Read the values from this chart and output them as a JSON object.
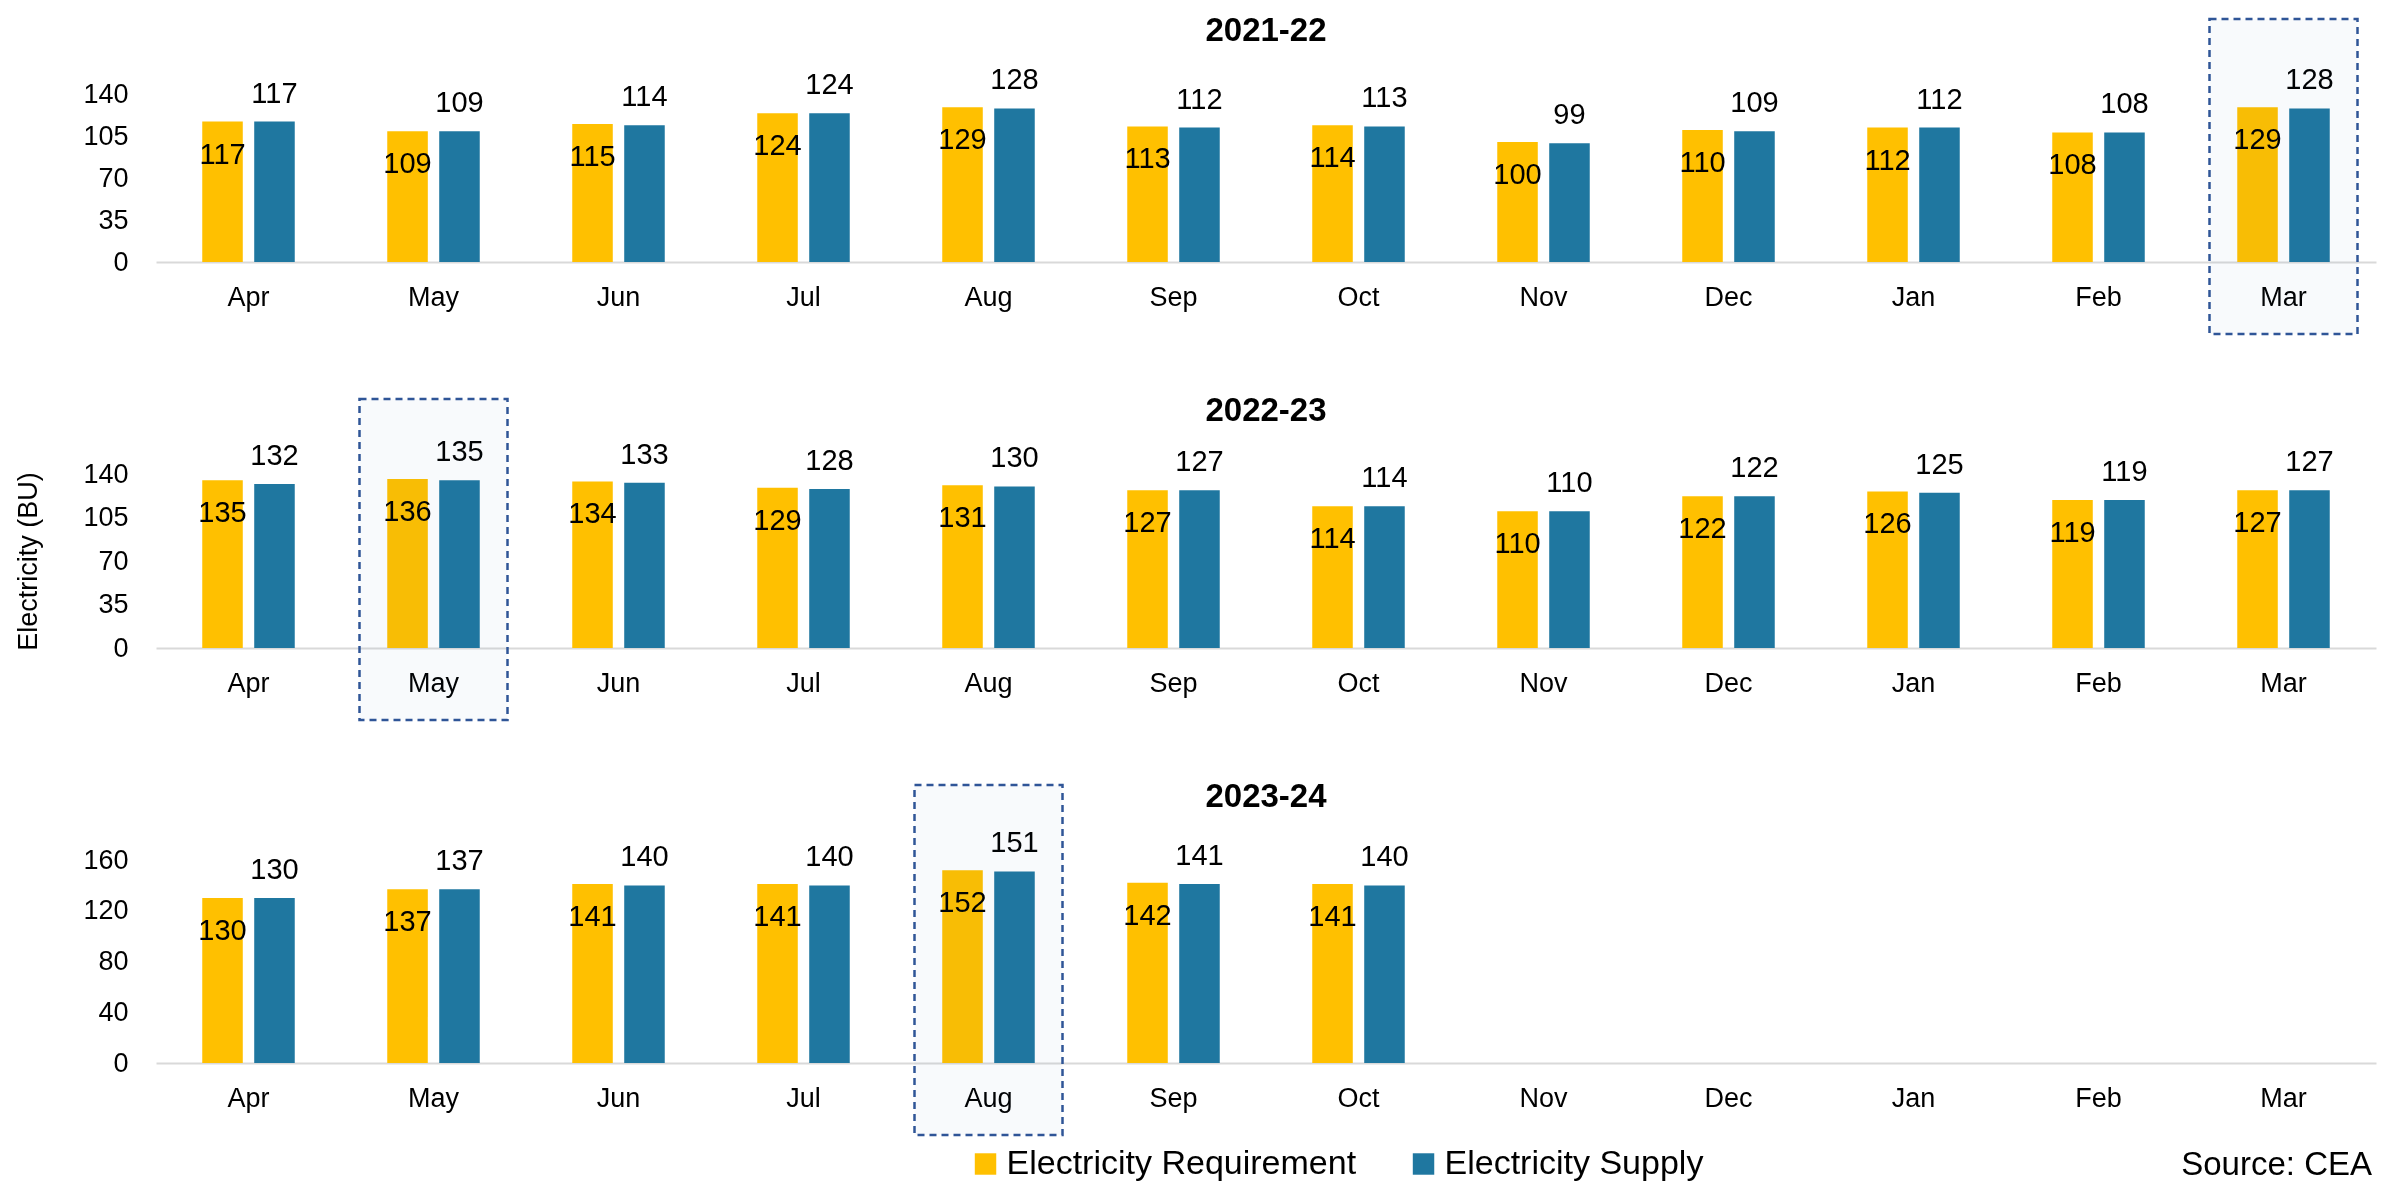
{
  "chart_data": [
    {
      "type": "bar",
      "title": "2021-22",
      "categories": [
        "Apr",
        "May",
        "Jun",
        "Jul",
        "Aug",
        "Sep",
        "Oct",
        "Nov",
        "Dec",
        "Jan",
        "Feb",
        "Mar"
      ],
      "series": [
        {
          "name": "Electricity Requirement",
          "color": "#ffc000",
          "values": [
            117,
            109,
            115,
            124,
            129,
            113,
            114,
            100,
            110,
            112,
            108,
            129
          ]
        },
        {
          "name": "Electricity Supply",
          "color": "#1f77a0",
          "values": [
            117,
            109,
            114,
            124,
            128,
            112,
            113,
            99,
            109,
            112,
            108,
            128
          ]
        }
      ],
      "ylim": [
        0,
        140
      ],
      "yticks": [
        0,
        35,
        70,
        105,
        140
      ],
      "data_labels": true,
      "legend": "bottom",
      "bands": [
        {
          "axis": "x",
          "from": "Mar",
          "to": "Mar",
          "color": "#2f5597"
        }
      ]
    },
    {
      "type": "bar",
      "title": "2022-23",
      "ylabel": "Electricity (BU)",
      "categories": [
        "Apr",
        "May",
        "Jun",
        "Jul",
        "Aug",
        "Sep",
        "Oct",
        "Nov",
        "Dec",
        "Jan",
        "Feb",
        "Mar"
      ],
      "series": [
        {
          "name": "Electricity Requirement",
          "color": "#ffc000",
          "values": [
            135,
            136,
            134,
            129,
            131,
            127,
            114,
            110,
            122,
            126,
            119,
            127
          ]
        },
        {
          "name": "Electricity Supply",
          "color": "#1f77a0",
          "values": [
            132,
            135,
            133,
            128,
            130,
            127,
            114,
            110,
            122,
            125,
            119,
            127
          ]
        }
      ],
      "ylim": [
        0,
        140
      ],
      "yticks": [
        0,
        35,
        70,
        105,
        140
      ],
      "data_labels": true,
      "legend": "bottom",
      "bands": [
        {
          "axis": "x",
          "from": "May",
          "to": "May",
          "color": "#2f5597"
        }
      ]
    },
    {
      "type": "bar",
      "title": "2023-24",
      "categories": [
        "Apr",
        "May",
        "Jun",
        "Jul",
        "Aug",
        "Sep",
        "Oct",
        "Nov",
        "Dec",
        "Jan",
        "Feb",
        "Mar"
      ],
      "series": [
        {
          "name": "Electricity Requirement",
          "color": "#ffc000",
          "values": [
            130,
            137,
            141,
            141,
            152,
            142,
            141,
            null,
            null,
            null,
            null,
            null
          ]
        },
        {
          "name": "Electricity Supply",
          "color": "#1f77a0",
          "values": [
            130,
            137,
            140,
            140,
            151,
            141,
            140,
            null,
            null,
            null,
            null,
            null
          ]
        }
      ],
      "ylim": [
        0,
        160
      ],
      "yticks": [
        0,
        40,
        80,
        120,
        160
      ],
      "data_labels": true,
      "legend": "bottom",
      "bands": [
        {
          "axis": "x",
          "from": "Aug",
          "to": "Aug",
          "color": "#2f5597"
        }
      ],
      "annotations": [
        "Source: CEA"
      ]
    }
  ]
}
